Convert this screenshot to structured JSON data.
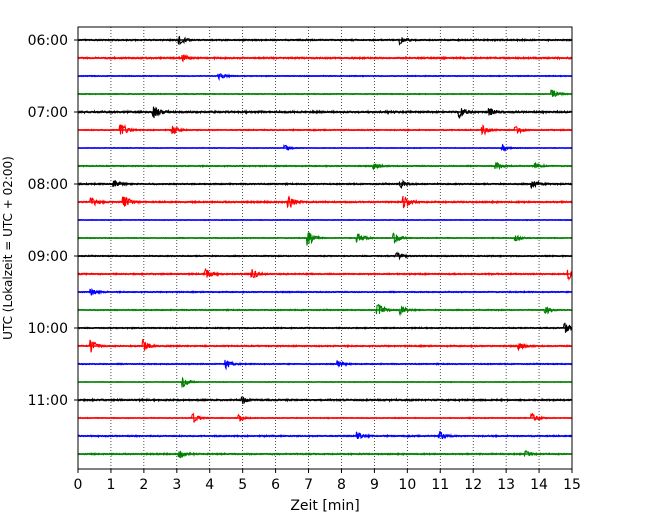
{
  "chart_data": {
    "type": "line",
    "title": "",
    "xlabel": "Zeit  [min]",
    "ylabel": "UTC (Lokalzeit = UTC + 02:00)",
    "xlim": [
      0,
      15
    ],
    "x_ticks": [
      "0",
      "1",
      "2",
      "3",
      "4",
      "5",
      "6",
      "7",
      "8",
      "9",
      "10",
      "11",
      "12",
      "13",
      "14",
      "15"
    ],
    "y_tick_labels": [
      "06:00",
      "07:00",
      "08:00",
      "09:00",
      "10:00",
      "11:00"
    ],
    "trace_interval_min": 15,
    "trace_colors": [
      "#000000",
      "#ff0000",
      "#0000ff",
      "#008000"
    ],
    "grid": "vertical dotted",
    "traces": [
      {
        "start": "06:00",
        "color": "#000000",
        "amp": 0.6,
        "events": [
          [
            3.1,
            1.2
          ],
          [
            9.8,
            1.2
          ]
        ]
      },
      {
        "start": "06:15",
        "color": "#ff0000",
        "amp": 0.7,
        "events": [
          [
            3.2,
            1.0
          ]
        ]
      },
      {
        "start": "06:30",
        "color": "#0000ff",
        "amp": 0.4,
        "events": [
          [
            4.3,
            1.0
          ]
        ]
      },
      {
        "start": "06:45",
        "color": "#008000",
        "amp": 0.4,
        "events": [
          [
            14.4,
            1.5
          ]
        ]
      },
      {
        "start": "07:00",
        "color": "#000000",
        "amp": 0.8,
        "events": [
          [
            2.3,
            2.0
          ],
          [
            11.6,
            1.5
          ],
          [
            12.5,
            1.2
          ]
        ]
      },
      {
        "start": "07:15",
        "color": "#ff0000",
        "amp": 0.5,
        "events": [
          [
            1.3,
            2.2
          ],
          [
            2.9,
            1.2
          ],
          [
            12.3,
            1.5
          ],
          [
            13.3,
            1.2
          ]
        ]
      },
      {
        "start": "07:30",
        "color": "#0000ff",
        "amp": 0.3,
        "events": [
          [
            6.3,
            1.0
          ],
          [
            12.9,
            1.0
          ]
        ]
      },
      {
        "start": "07:45",
        "color": "#008000",
        "amp": 0.5,
        "events": [
          [
            9.0,
            1.0
          ],
          [
            12.7,
            1.2
          ],
          [
            13.9,
            1.0
          ]
        ]
      },
      {
        "start": "08:00",
        "color": "#000000",
        "amp": 0.6,
        "events": [
          [
            1.1,
            1.2
          ],
          [
            9.8,
            1.2
          ],
          [
            13.8,
            1.2
          ]
        ]
      },
      {
        "start": "08:15",
        "color": "#ff0000",
        "amp": 0.7,
        "events": [
          [
            1.4,
            2.3
          ],
          [
            6.4,
            2.2
          ],
          [
            9.9,
            1.8
          ],
          [
            0.4,
            1.5
          ]
        ]
      },
      {
        "start": "08:30",
        "color": "#0000ff",
        "amp": 0.3,
        "events": []
      },
      {
        "start": "08:45",
        "color": "#008000",
        "amp": 0.4,
        "events": [
          [
            7.0,
            2.0
          ],
          [
            8.5,
            1.8
          ],
          [
            9.6,
            2.0
          ],
          [
            13.3,
            1.0
          ]
        ]
      },
      {
        "start": "09:00",
        "color": "#000000",
        "amp": 0.5,
        "events": [
          [
            9.7,
            1.0
          ]
        ]
      },
      {
        "start": "09:15",
        "color": "#ff0000",
        "amp": 0.6,
        "events": [
          [
            3.9,
            1.5
          ],
          [
            5.3,
            1.5
          ],
          [
            14.9,
            1.5
          ]
        ]
      },
      {
        "start": "09:30",
        "color": "#0000ff",
        "amp": 0.5,
        "events": [
          [
            0.4,
            1.2
          ]
        ]
      },
      {
        "start": "09:45",
        "color": "#008000",
        "amp": 0.5,
        "events": [
          [
            9.1,
            2.5
          ],
          [
            9.8,
            1.5
          ],
          [
            14.2,
            1.2
          ]
        ]
      },
      {
        "start": "10:00",
        "color": "#000000",
        "amp": 0.5,
        "events": [
          [
            14.8,
            1.5
          ]
        ]
      },
      {
        "start": "10:15",
        "color": "#ff0000",
        "amp": 0.6,
        "events": [
          [
            0.4,
            2.0
          ],
          [
            2.0,
            1.8
          ],
          [
            13.4,
            1.2
          ]
        ]
      },
      {
        "start": "10:30",
        "color": "#0000ff",
        "amp": 0.5,
        "events": [
          [
            4.5,
            1.2
          ],
          [
            7.9,
            1.0
          ]
        ]
      },
      {
        "start": "10:45",
        "color": "#008000",
        "amp": 0.3,
        "events": [
          [
            3.2,
            1.5
          ]
        ]
      },
      {
        "start": "11:00",
        "color": "#000000",
        "amp": 0.7,
        "events": [
          [
            5.0,
            1.0
          ]
        ]
      },
      {
        "start": "11:15",
        "color": "#ff0000",
        "amp": 0.4,
        "events": [
          [
            3.5,
            1.5
          ],
          [
            4.9,
            1.0
          ],
          [
            13.8,
            1.5
          ]
        ]
      },
      {
        "start": "11:30",
        "color": "#0000ff",
        "amp": 0.6,
        "events": [
          [
            8.5,
            1.2
          ],
          [
            11.0,
            1.2
          ]
        ]
      },
      {
        "start": "11:45",
        "color": "#008000",
        "amp": 0.6,
        "events": [
          [
            3.1,
            1.2
          ],
          [
            13.6,
            1.0
          ]
        ]
      }
    ]
  }
}
